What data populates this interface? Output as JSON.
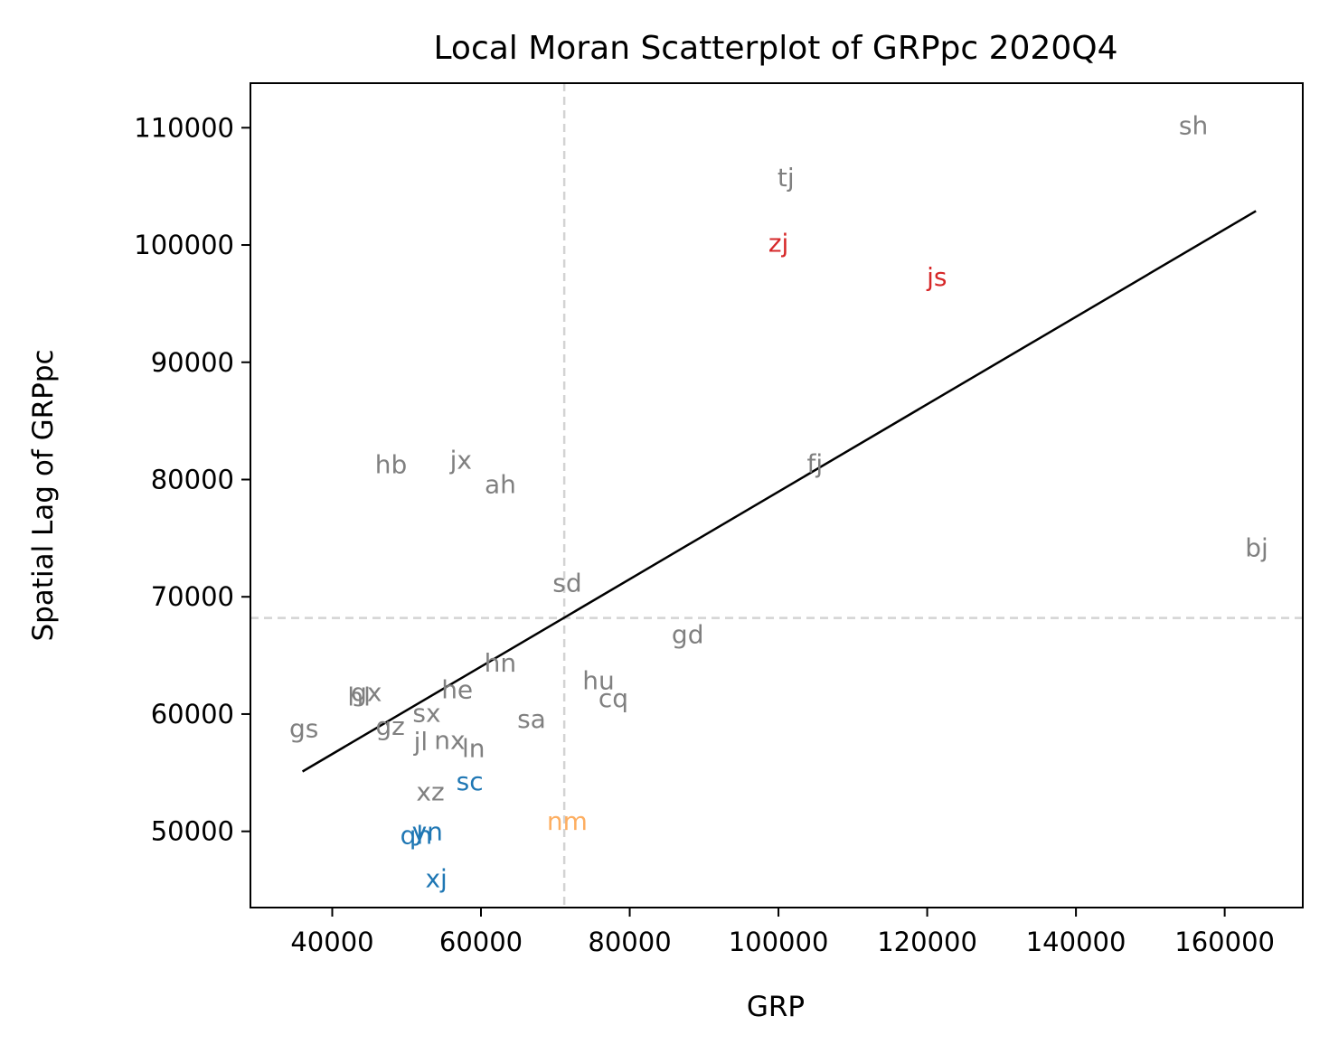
{
  "chart_data": {
    "type": "scatter",
    "title": "Local Moran Scatterplot of GRPpc 2020Q4",
    "xlabel": "GRP",
    "ylabel": "Spatial Lag of GRPpc",
    "xlim": [
      29000,
      170500
    ],
    "ylim": [
      43500,
      113800
    ],
    "xticks": [
      40000,
      60000,
      80000,
      100000,
      120000,
      140000,
      160000
    ],
    "yticks": [
      50000,
      60000,
      70000,
      80000,
      90000,
      100000,
      110000
    ],
    "grid": false,
    "mean_x": 71200,
    "mean_y": 68200,
    "fit_line": {
      "x": [
        36000,
        164200
      ],
      "y": [
        55100,
        102900
      ],
      "color": "#000000"
    },
    "colors": {
      "not_significant": "#808080",
      "high_high": "#d62728",
      "low_low": "#1f77b4",
      "high_low": "#fdae61",
      "reference_lines": "#d3d3d3"
    },
    "points": [
      {
        "label": "sh",
        "x": 155800,
        "y": 110200,
        "group": "not_significant"
      },
      {
        "label": "tj",
        "x": 101000,
        "y": 105800,
        "group": "not_significant"
      },
      {
        "label": "zj",
        "x": 100000,
        "y": 100200,
        "group": "high_high"
      },
      {
        "label": "js",
        "x": 121300,
        "y": 97300,
        "group": "high_high"
      },
      {
        "label": "hb",
        "x": 47900,
        "y": 81300,
        "group": "not_significant"
      },
      {
        "label": "jx",
        "x": 57300,
        "y": 81700,
        "group": "not_significant"
      },
      {
        "label": "ah",
        "x": 62600,
        "y": 79600,
        "group": "not_significant"
      },
      {
        "label": "fj",
        "x": 104900,
        "y": 81400,
        "group": "not_significant"
      },
      {
        "label": "bj",
        "x": 164300,
        "y": 74200,
        "group": "not_significant"
      },
      {
        "label": "sd",
        "x": 71600,
        "y": 71200,
        "group": "not_significant"
      },
      {
        "label": "gd",
        "x": 87800,
        "y": 66800,
        "group": "not_significant"
      },
      {
        "label": "hn",
        "x": 62600,
        "y": 64400,
        "group": "not_significant"
      },
      {
        "label": "hu",
        "x": 75800,
        "y": 62900,
        "group": "not_significant"
      },
      {
        "label": "cq",
        "x": 77800,
        "y": 61400,
        "group": "not_significant"
      },
      {
        "label": "gx",
        "x": 44600,
        "y": 61900,
        "group": "not_significant"
      },
      {
        "label": "hl",
        "x": 43600,
        "y": 61500,
        "group": "not_significant"
      },
      {
        "label": "he",
        "x": 56800,
        "y": 62100,
        "group": "not_significant"
      },
      {
        "label": "sx",
        "x": 52700,
        "y": 60100,
        "group": "not_significant"
      },
      {
        "label": "sa",
        "x": 66800,
        "y": 59600,
        "group": "not_significant"
      },
      {
        "label": "gs",
        "x": 36200,
        "y": 58800,
        "group": "not_significant"
      },
      {
        "label": "gz",
        "x": 47800,
        "y": 59000,
        "group": "not_significant"
      },
      {
        "label": "jl",
        "x": 51900,
        "y": 57700,
        "group": "not_significant"
      },
      {
        "label": "nx",
        "x": 55800,
        "y": 57800,
        "group": "not_significant"
      },
      {
        "label": "ln",
        "x": 59000,
        "y": 57100,
        "group": "not_significant"
      },
      {
        "label": "sc",
        "x": 58500,
        "y": 54300,
        "group": "low_low"
      },
      {
        "label": "xz",
        "x": 53200,
        "y": 53400,
        "group": "not_significant"
      },
      {
        "label": "nm",
        "x": 71600,
        "y": 50900,
        "group": "high_low"
      },
      {
        "label": "yn",
        "x": 52800,
        "y": 50000,
        "group": "low_low"
      },
      {
        "label": "qh",
        "x": 51300,
        "y": 49700,
        "group": "low_low"
      },
      {
        "label": "xj",
        "x": 54000,
        "y": 46000,
        "group": "low_low"
      }
    ]
  }
}
